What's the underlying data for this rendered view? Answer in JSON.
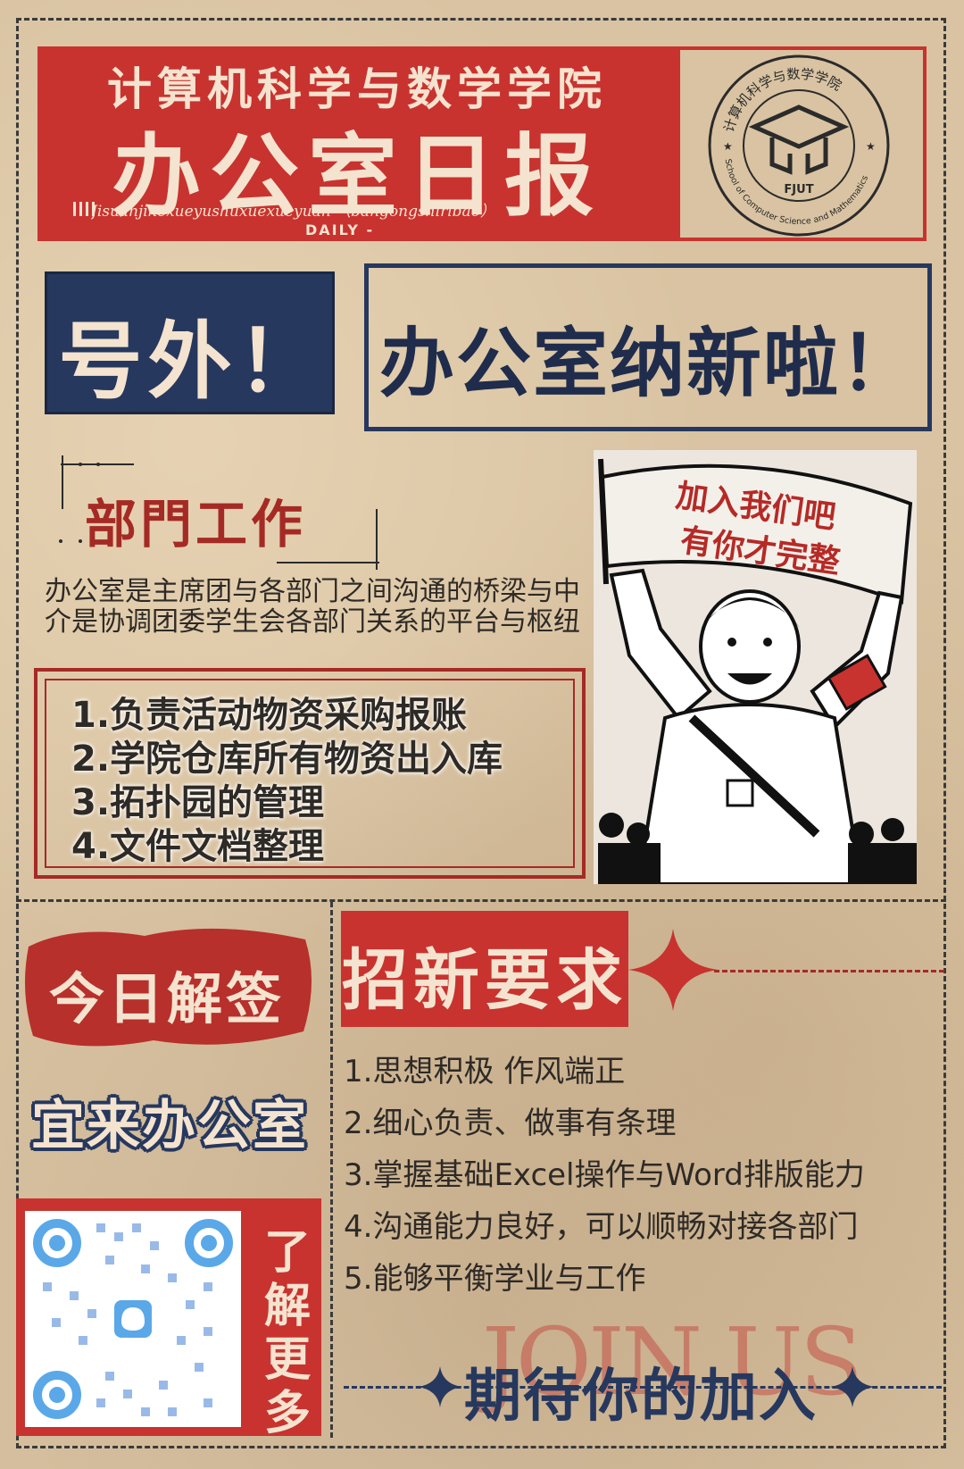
{
  "header": {
    "college": "计算机科学与数学学院",
    "title": "办公室日报",
    "pinyin": "Jisuanjikexueyushuxuexueyuan  （bangongshiribao）",
    "daily": "DAILY -"
  },
  "seal": {
    "arc_text": "计算机科学与数学学院",
    "english": "School of Computer Science and Mathematics",
    "abbr": "FJUT"
  },
  "headline": {
    "extra": "号外！",
    "recruit": "办公室纳新啦！"
  },
  "department": {
    "title": "部門工作",
    "desc": "办公室是主席团与各部门之间沟通的桥梁与中介是协调团委学生会各部门关系的平台与枢纽",
    "duties": [
      "1.负责活动物资采购报账",
      "2.学院仓库所有物资出入库",
      "3.拓扑园的管理",
      "4.文件文档整理"
    ]
  },
  "illustration": {
    "banner_line1": "加入我们吧",
    "banner_line2": "有你才完整"
  },
  "fortune": {
    "title": "今日解签",
    "verdict": "宜来办公室"
  },
  "qr": {
    "more": [
      "了",
      "解",
      "更",
      "多"
    ]
  },
  "requirements": {
    "title": "招新要求",
    "items": [
      "1.思想积极 作风端正",
      "2.细心负责、做事有条理",
      "3.掌握基础Excel操作与Word排版能力",
      "4.沟通能力良好，可以顺畅对接各部门",
      "5.能够平衡学业与工作"
    ]
  },
  "footer": {
    "join_us": "JOIN US",
    "await": "期待你的加入"
  },
  "colors": {
    "red": "#c8332f",
    "navy": "#26385e",
    "paper": "#d9c3a2",
    "cream": "#f4e3cf"
  }
}
